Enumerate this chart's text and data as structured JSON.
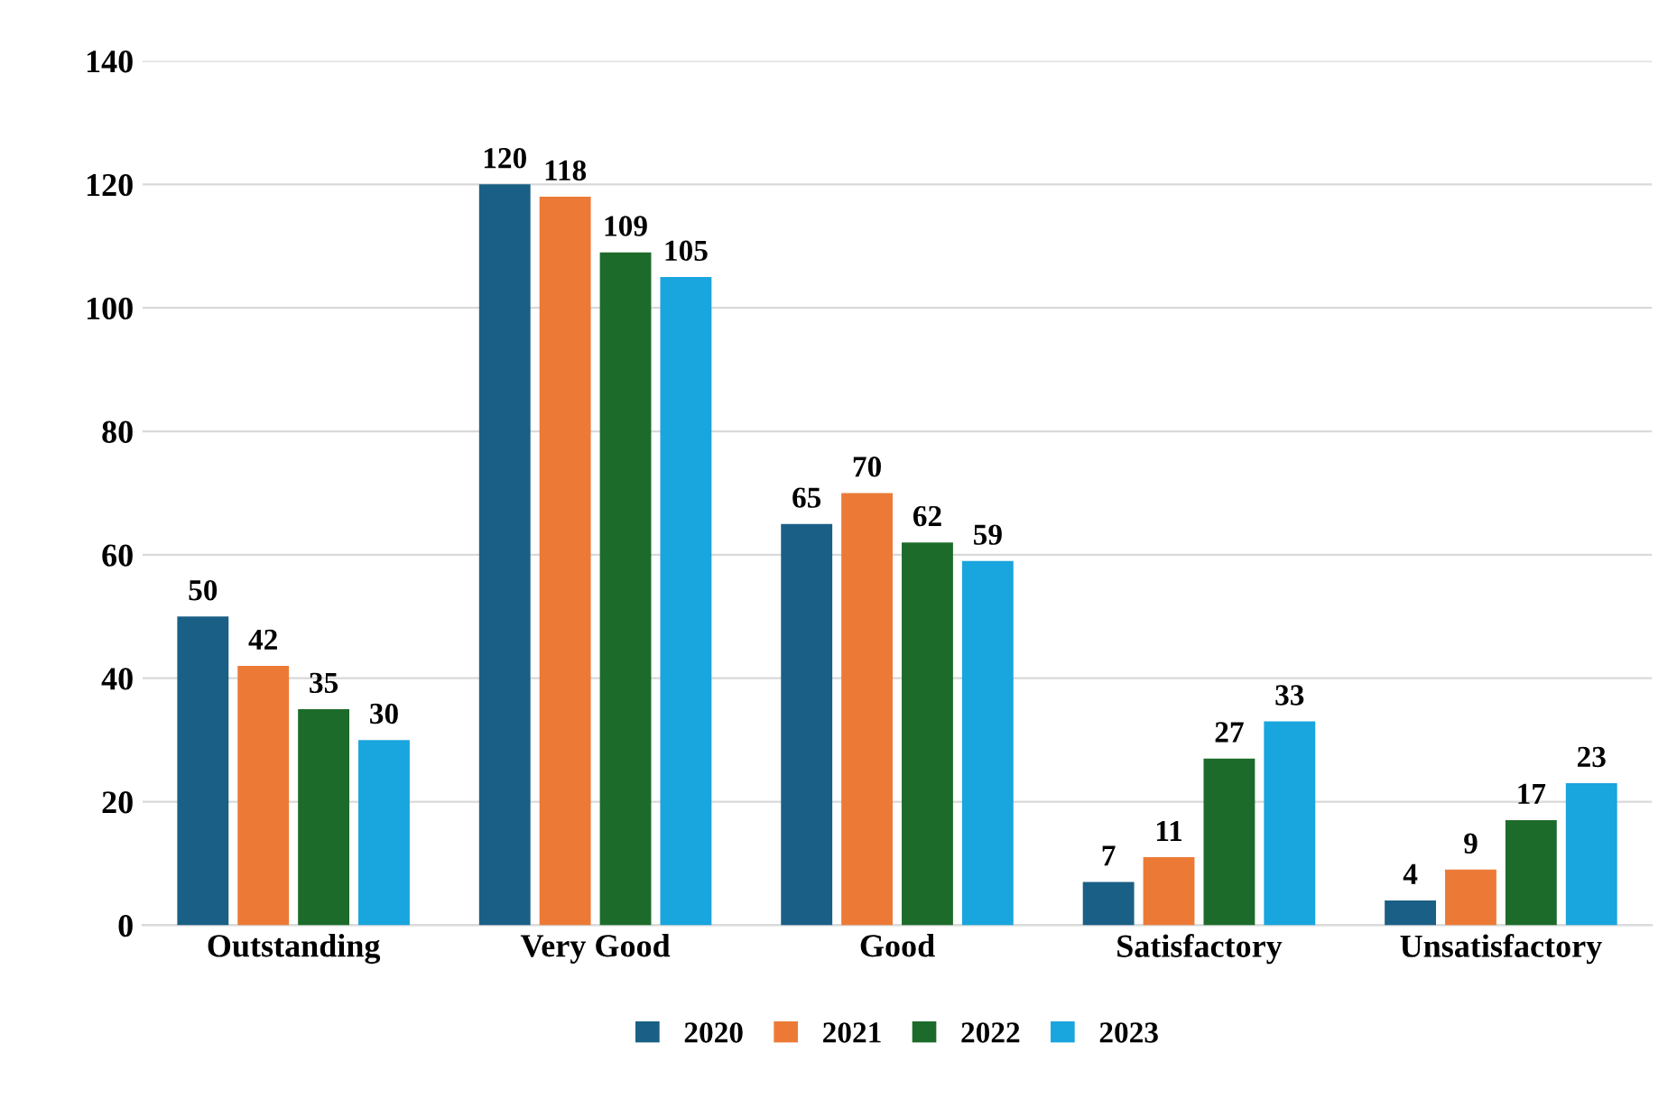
{
  "chart_data": {
    "type": "bar",
    "categories": [
      "Outstanding",
      "Very Good",
      "Good",
      "Satisfactory",
      "Unsatisfactory"
    ],
    "series": [
      {
        "name": "2020",
        "color": "#1a5f85",
        "values": [
          50,
          120,
          65,
          7,
          4
        ]
      },
      {
        "name": "2021",
        "color": "#ec7a36",
        "values": [
          42,
          118,
          70,
          11,
          9
        ]
      },
      {
        "name": "2022",
        "color": "#1d6b2a",
        "values": [
          35,
          109,
          62,
          27,
          17
        ]
      },
      {
        "name": "2023",
        "color": "#19a5dd",
        "values": [
          30,
          105,
          59,
          33,
          23
        ]
      }
    ],
    "ylim": [
      0,
      140
    ],
    "yticks": [
      0,
      20,
      40,
      60,
      80,
      100,
      120,
      140
    ],
    "grid": "y",
    "legend": "bottom",
    "data_labels": true
  }
}
